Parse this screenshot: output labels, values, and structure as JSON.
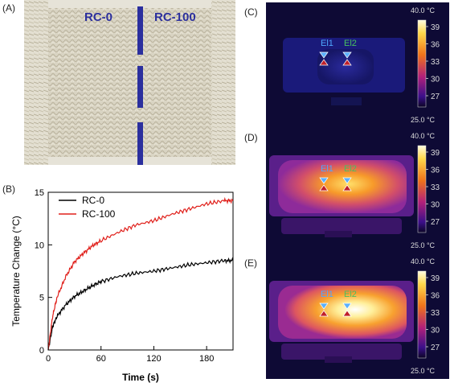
{
  "panel_labels": {
    "a": "(A)",
    "b": "(B)",
    "c": "(C)",
    "d": "(D)",
    "e": "(E)"
  },
  "fabric_photo": {
    "left_label": "RC-0",
    "right_label": "RC-100",
    "divider_color": "#2b2f9e"
  },
  "thermal_images": [
    {
      "panel": "(C)",
      "intensity": "low",
      "scale_max": "40.0 °C",
      "scale_min": "25.0 °C",
      "ticks": [
        "39",
        "36",
        "33",
        "30",
        "27"
      ],
      "marker_1": "El1",
      "marker_2": "El2"
    },
    {
      "panel": "(D)",
      "intensity": "medium",
      "scale_max": "40.0 °C",
      "scale_min": "25.0 °C",
      "ticks": [
        "39",
        "36",
        "33",
        "30",
        "27"
      ],
      "marker_1": "El1",
      "marker_2": "El2"
    },
    {
      "panel": "(E)",
      "intensity": "high",
      "scale_max": "40.0 °C",
      "scale_min": "25.0 °C",
      "ticks": [
        "39",
        "36",
        "33",
        "30",
        "27"
      ],
      "marker_1": "El1",
      "marker_2": "El2"
    }
  ],
  "chart_data": {
    "type": "line",
    "title": "",
    "xlabel": "Time (s)",
    "ylabel": "Temperature Change (°C)",
    "xlim": [
      0,
      210
    ],
    "ylim": [
      0,
      15
    ],
    "xticks": [
      0,
      60,
      120,
      180
    ],
    "yticks": [
      0,
      5,
      10,
      15
    ],
    "legend_position": "top-left",
    "grid": false,
    "series": [
      {
        "name": "RC-0",
        "color": "#000000",
        "x": [
          0,
          5,
          10,
          20,
          30,
          40,
          50,
          60,
          80,
          100,
          120,
          140,
          160,
          180,
          200,
          210
        ],
        "y": [
          0,
          2.2,
          3.2,
          4.3,
          5.1,
          5.6,
          6.1,
          6.5,
          7.0,
          7.3,
          7.5,
          7.8,
          8.1,
          8.3,
          8.5,
          8.5
        ]
      },
      {
        "name": "RC-100",
        "color": "#e0201b",
        "x": [
          0,
          5,
          10,
          20,
          30,
          40,
          50,
          60,
          80,
          100,
          120,
          140,
          160,
          180,
          200,
          210
        ],
        "y": [
          0,
          3.2,
          5.0,
          7.0,
          8.4,
          9.2,
          9.9,
          10.4,
          11.2,
          11.9,
          12.3,
          12.9,
          13.4,
          13.9,
          14.2,
          14.2
        ]
      }
    ]
  }
}
